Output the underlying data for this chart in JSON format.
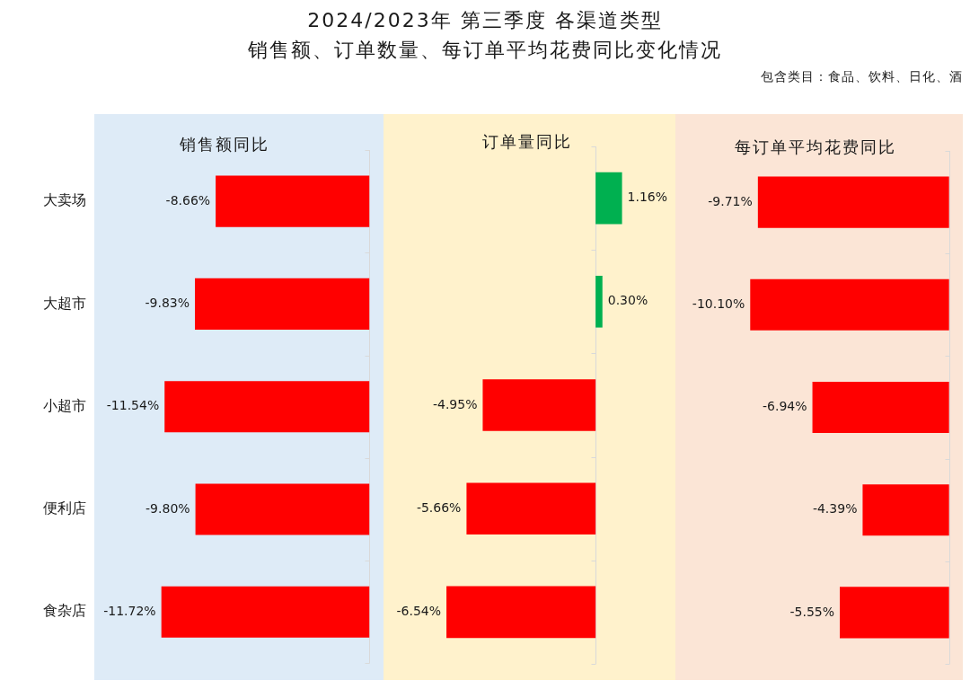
{
  "chart_data": [
    {
      "type": "other",
      "title": "2024/2023年 第三季度 各渠道类型",
      "subtitle": "销售额、订单数量、每订单平均花费同比变化情况",
      "annotations": [
        "包含类目：食品、饮料、日化、酒"
      ]
    },
    {
      "type": "bar",
      "orientation": "horizontal",
      "title": "销售额同比",
      "categories": [
        "大卖场",
        "大超市",
        "小超市",
        "便利店",
        "食杂店"
      ],
      "values": [
        -8.66,
        -9.83,
        -11.54,
        -9.8,
        -11.72
      ],
      "value_labels": [
        "-8.66%",
        "-9.83%",
        "-11.54%",
        "-9.80%",
        "-11.72%"
      ],
      "color": "#ff0000",
      "xlim": [
        -15.5,
        0.8
      ],
      "tick_labels": "y"
    },
    {
      "type": "bar",
      "orientation": "horizontal",
      "title": "订单量同比",
      "categories": [
        null,
        null,
        null,
        null,
        null
      ],
      "values": [
        1.16,
        0.3,
        -4.95,
        -5.66,
        -6.54
      ],
      "value_labels": [
        "1.16%",
        "0.30%",
        "-4.95%",
        "-5.66%",
        "-6.54%"
      ],
      "colors": [
        "#00b050",
        "#00b050",
        "#ff0000",
        "#ff0000",
        "#ff0000"
      ],
      "xlim": [
        -9.3,
        3.5
      ],
      "tick_labels": false
    },
    {
      "type": "bar",
      "orientation": "horizontal",
      "title": "每订单平均花费同比",
      "categories": [
        null,
        null,
        null,
        null,
        null
      ],
      "values": [
        -9.71,
        -10.1,
        -6.94,
        -4.39,
        -5.55
      ],
      "value_labels": [
        "-9.71%",
        "-10.10%",
        "-6.94%",
        "-4.39%",
        "-5.55%"
      ],
      "color": "#ff0000",
      "xlim": [
        -13.9,
        0.7
      ],
      "tick_labels": false
    }
  ]
}
